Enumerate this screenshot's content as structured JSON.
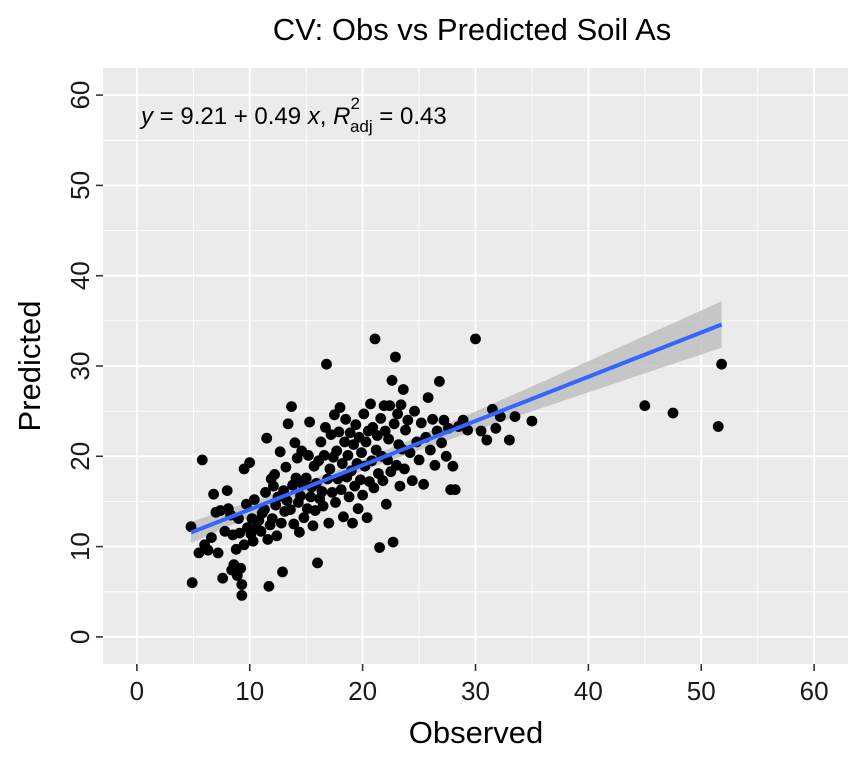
{
  "chart_data": {
    "type": "scatter",
    "title": "CV: Obs vs Predicted Soil As",
    "xlabel": "Observed",
    "ylabel": "Predicted",
    "xlim": [
      -3.0,
      63.0
    ],
    "ylim": [
      -3.0,
      63.0
    ],
    "x_ticks": [
      "0",
      "10",
      "20",
      "30",
      "40",
      "50",
      "60"
    ],
    "y_ticks": [
      "0",
      "10",
      "20",
      "30",
      "40",
      "50",
      "60"
    ],
    "grid": true,
    "regression": {
      "intercept": 9.21,
      "slope": 0.49,
      "r2_adj": 0.43,
      "x_range": [
        4.8,
        51.8
      ],
      "color": "#3366FF",
      "band_color": "#BFBFBF",
      "label_parts": [
        "y",
        " = 9.21 + 0.49 ",
        "x",
        ", ",
        "R",
        "2",
        "adj",
        " = 0.43"
      ]
    },
    "colors": {
      "points": "#000000",
      "panel": "#EBEBEB",
      "grid": "#FFFFFF"
    },
    "points": [
      [
        4.8,
        12.2
      ],
      [
        4.9,
        6.0
      ],
      [
        5.5,
        9.3
      ],
      [
        5.8,
        19.6
      ],
      [
        6.0,
        10.2
      ],
      [
        6.3,
        9.6
      ],
      [
        6.6,
        11.0
      ],
      [
        6.8,
        15.8
      ],
      [
        7.0,
        13.8
      ],
      [
        7.2,
        9.3
      ],
      [
        7.4,
        14.0
      ],
      [
        7.6,
        6.5
      ],
      [
        7.8,
        11.7
      ],
      [
        8.0,
        16.2
      ],
      [
        8.1,
        14.2
      ],
      [
        8.3,
        13.5
      ],
      [
        8.4,
        7.4
      ],
      [
        8.5,
        11.3
      ],
      [
        8.6,
        8.0
      ],
      [
        8.8,
        9.7
      ],
      [
        8.9,
        6.8
      ],
      [
        9.0,
        13.1
      ],
      [
        9.1,
        11.5
      ],
      [
        9.2,
        7.6
      ],
      [
        9.3,
        5.8
      ],
      [
        9.3,
        4.6
      ],
      [
        9.5,
        10.2
      ],
      [
        9.5,
        18.6
      ],
      [
        9.7,
        14.7
      ],
      [
        9.8,
        12.1
      ],
      [
        10.0,
        19.3
      ],
      [
        10.1,
        11.4
      ],
      [
        10.2,
        13.1
      ],
      [
        10.3,
        10.6
      ],
      [
        10.4,
        15.2
      ],
      [
        10.6,
        12.1
      ],
      [
        10.8,
        12.9
      ],
      [
        11.0,
        11.7
      ],
      [
        11.1,
        13.7
      ],
      [
        11.3,
        14.1
      ],
      [
        11.4,
        16.0
      ],
      [
        11.5,
        22.0
      ],
      [
        11.6,
        10.8
      ],
      [
        11.7,
        5.6
      ],
      [
        11.8,
        12.4
      ],
      [
        11.9,
        17.5
      ],
      [
        12.0,
        13.1
      ],
      [
        12.1,
        16.7
      ],
      [
        12.2,
        18.0
      ],
      [
        12.3,
        14.6
      ],
      [
        12.4,
        11.2
      ],
      [
        12.5,
        15.5
      ],
      [
        12.7,
        20.5
      ],
      [
        12.8,
        12.6
      ],
      [
        12.9,
        7.2
      ],
      [
        13.0,
        16.2
      ],
      [
        13.1,
        13.9
      ],
      [
        13.2,
        18.8
      ],
      [
        13.3,
        15.1
      ],
      [
        13.4,
        23.6
      ],
      [
        13.6,
        14.1
      ],
      [
        13.7,
        25.5
      ],
      [
        13.8,
        16.8
      ],
      [
        13.9,
        12.5
      ],
      [
        14.0,
        21.5
      ],
      [
        14.1,
        17.6
      ],
      [
        14.2,
        19.8
      ],
      [
        14.3,
        14.9
      ],
      [
        14.4,
        11.6
      ],
      [
        14.5,
        15.6
      ],
      [
        14.6,
        20.6
      ],
      [
        14.7,
        16.9
      ],
      [
        14.8,
        13.2
      ],
      [
        15.0,
        17.6
      ],
      [
        15.1,
        14.2
      ],
      [
        15.2,
        20.1
      ],
      [
        15.3,
        23.8
      ],
      [
        15.4,
        15.5
      ],
      [
        15.5,
        16.6
      ],
      [
        15.6,
        12.3
      ],
      [
        15.7,
        18.9
      ],
      [
        15.8,
        14.0
      ],
      [
        15.9,
        17.0
      ],
      [
        16.0,
        8.2
      ],
      [
        16.1,
        19.5
      ],
      [
        16.2,
        15.3
      ],
      [
        16.3,
        21.6
      ],
      [
        16.4,
        16.1
      ],
      [
        16.5,
        14.5
      ],
      [
        16.6,
        20.1
      ],
      [
        16.7,
        23.2
      ],
      [
        16.8,
        30.2
      ],
      [
        16.9,
        17.5
      ],
      [
        17.0,
        12.6
      ],
      [
        17.1,
        18.6
      ],
      [
        17.2,
        22.4
      ],
      [
        17.3,
        16.0
      ],
      [
        17.4,
        19.9
      ],
      [
        17.5,
        24.6
      ],
      [
        17.6,
        14.9
      ],
      [
        17.7,
        20.6
      ],
      [
        17.8,
        17.5
      ],
      [
        17.9,
        22.7
      ],
      [
        18.0,
        25.4
      ],
      [
        18.1,
        16.3
      ],
      [
        18.2,
        19.2
      ],
      [
        18.3,
        13.3
      ],
      [
        18.4,
        21.6
      ],
      [
        18.5,
        24.1
      ],
      [
        18.6,
        17.7
      ],
      [
        18.7,
        20.1
      ],
      [
        18.8,
        15.5
      ],
      [
        18.9,
        22.6
      ],
      [
        19.0,
        18.4
      ],
      [
        19.1,
        12.6
      ],
      [
        19.2,
        21.3
      ],
      [
        19.3,
        16.7
      ],
      [
        19.4,
        23.5
      ],
      [
        19.5,
        19.2
      ],
      [
        19.6,
        14.2
      ],
      [
        19.7,
        22.1
      ],
      [
        19.8,
        17.4
      ],
      [
        19.9,
        20.4
      ],
      [
        20.0,
        15.7
      ],
      [
        20.1,
        24.7
      ],
      [
        20.2,
        18.9
      ],
      [
        20.3,
        21.6
      ],
      [
        20.4,
        13.2
      ],
      [
        20.5,
        22.8
      ],
      [
        20.6,
        17.2
      ],
      [
        20.7,
        25.8
      ],
      [
        20.8,
        19.5
      ],
      [
        20.9,
        23.2
      ],
      [
        21.0,
        16.5
      ],
      [
        21.1,
        33.0
      ],
      [
        21.2,
        20.7
      ],
      [
        21.3,
        22.3
      ],
      [
        21.4,
        18.1
      ],
      [
        21.5,
        9.9
      ],
      [
        21.6,
        24.2
      ],
      [
        21.7,
        20.0
      ],
      [
        21.8,
        17.3
      ],
      [
        21.9,
        25.6
      ],
      [
        22.0,
        22.8
      ],
      [
        22.1,
        14.7
      ],
      [
        22.2,
        19.6
      ],
      [
        22.3,
        21.9
      ],
      [
        22.4,
        25.6
      ],
      [
        22.5,
        18.3
      ],
      [
        22.6,
        28.4
      ],
      [
        22.7,
        10.5
      ],
      [
        22.8,
        23.6
      ],
      [
        22.9,
        31.0
      ],
      [
        23.0,
        19.0
      ],
      [
        23.1,
        24.7
      ],
      [
        23.2,
        21.3
      ],
      [
        23.3,
        16.7
      ],
      [
        23.4,
        25.7
      ],
      [
        23.5,
        20.8
      ],
      [
        23.6,
        27.4
      ],
      [
        23.7,
        18.6
      ],
      [
        23.8,
        22.9
      ],
      [
        24.0,
        24.0
      ],
      [
        24.2,
        20.4
      ],
      [
        24.4,
        17.3
      ],
      [
        24.6,
        25.0
      ],
      [
        24.8,
        21.6
      ],
      [
        25.0,
        19.6
      ],
      [
        25.2,
        23.7
      ],
      [
        25.4,
        16.9
      ],
      [
        25.6,
        22.1
      ],
      [
        25.8,
        26.5
      ],
      [
        26.0,
        20.7
      ],
      [
        26.2,
        24.1
      ],
      [
        26.4,
        19.0
      ],
      [
        26.6,
        22.8
      ],
      [
        26.8,
        28.3
      ],
      [
        27.0,
        21.5
      ],
      [
        27.2,
        24.0
      ],
      [
        27.4,
        20.0
      ],
      [
        27.6,
        23.1
      ],
      [
        27.8,
        16.3
      ],
      [
        28.0,
        18.9
      ],
      [
        28.2,
        16.3
      ],
      [
        28.5,
        23.3
      ],
      [
        28.9,
        24.0
      ],
      [
        29.3,
        22.9
      ],
      [
        30.0,
        33.0
      ],
      [
        30.5,
        22.8
      ],
      [
        31.0,
        21.8
      ],
      [
        31.5,
        25.2
      ],
      [
        31.8,
        23.1
      ],
      [
        32.2,
        24.4
      ],
      [
        33.0,
        21.8
      ],
      [
        33.5,
        24.4
      ],
      [
        35.0,
        23.9
      ],
      [
        45.0,
        25.6
      ],
      [
        47.5,
        24.8
      ],
      [
        51.5,
        23.3
      ],
      [
        51.8,
        30.2
      ]
    ]
  }
}
